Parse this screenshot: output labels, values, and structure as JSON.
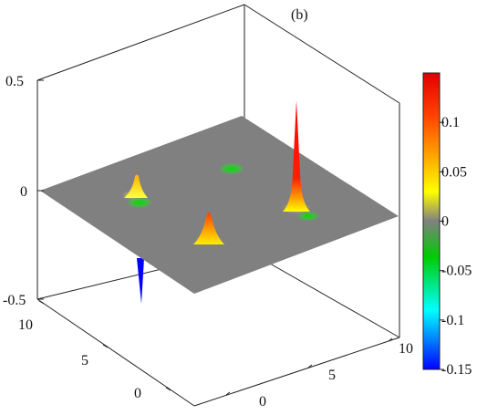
{
  "chart_data": {
    "type": "surface3d",
    "panel_label": "(b)",
    "xlabel": "",
    "ylabel": "",
    "zlabel": "",
    "x_ticks": [
      "0",
      "5",
      "10"
    ],
    "y_ticks": [
      "0",
      "5",
      "10"
    ],
    "z_ticks": [
      "-0.5",
      "0",
      "0.5"
    ],
    "xlim": [
      0,
      11
    ],
    "ylim": [
      0,
      11
    ],
    "zlim": [
      -0.5,
      0.5
    ],
    "baseline": 0,
    "peaks": [
      {
        "name": "peak-tall",
        "x": 10.5,
        "y": 4.5,
        "value": 0.42,
        "color": "#ff0000"
      },
      {
        "name": "peak-mid",
        "x": 3.0,
        "y": 3.0,
        "value": 0.15,
        "color": "#ffb000"
      },
      {
        "name": "peak-left",
        "x": 2.5,
        "y": 9.0,
        "value": 0.1,
        "color": "#ffd700"
      },
      {
        "name": "dip-blue",
        "x": 0.5,
        "y": 8.0,
        "value": -0.4,
        "color": "#0000ff"
      }
    ],
    "wells": [
      {
        "x": 8.0,
        "y": 9.0,
        "value": -0.03
      },
      {
        "x": 3.0,
        "y": 8.0,
        "value": -0.03
      },
      {
        "x": 10.0,
        "y": 3.0,
        "value": -0.03
      }
    ],
    "colorbar": {
      "ticks": [
        "0.1",
        "0.05",
        "0",
        "-0.05",
        "-0.1",
        "-0.15"
      ],
      "range": [
        -0.15,
        0.15
      ],
      "colors": [
        "#ff0000",
        "#ffa500",
        "#ffff00",
        "#808080",
        "#00cc00",
        "#00ffff",
        "#0000ff"
      ]
    },
    "grid": false
  }
}
